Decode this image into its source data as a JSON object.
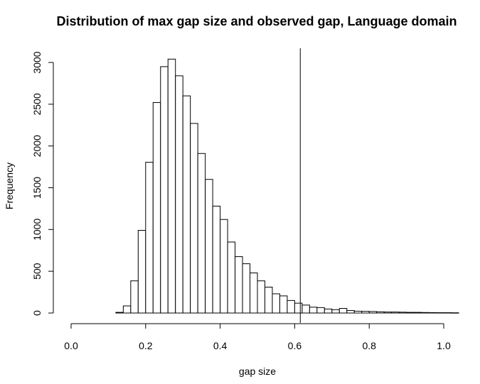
{
  "chart_data": {
    "type": "histogram",
    "title": "Distribution of max gap size and observed gap, Language domain",
    "xlabel": "gap size",
    "ylabel": "Frequency",
    "xlim": [
      0.0,
      1.05
    ],
    "ylim": [
      0,
      3000
    ],
    "x_ticks": [
      "0.0",
      "0.2",
      "0.4",
      "0.6",
      "0.8",
      "1.0"
    ],
    "y_ticks": [
      "0",
      "500",
      "1000",
      "1500",
      "2000",
      "2500",
      "3000"
    ],
    "bin_width": 0.02,
    "bin_start": 0.12,
    "counts": [
      8,
      85,
      385,
      990,
      1805,
      2520,
      2950,
      3040,
      2840,
      2600,
      2270,
      1910,
      1600,
      1280,
      1120,
      850,
      675,
      590,
      480,
      385,
      310,
      230,
      205,
      150,
      118,
      95,
      70,
      65,
      48,
      40,
      55,
      30,
      22,
      20,
      18,
      15,
      12,
      12,
      10,
      8,
      8,
      6,
      5,
      4,
      4,
      3
    ],
    "observed_gap": 0.615,
    "grid": false,
    "legend": "none"
  }
}
